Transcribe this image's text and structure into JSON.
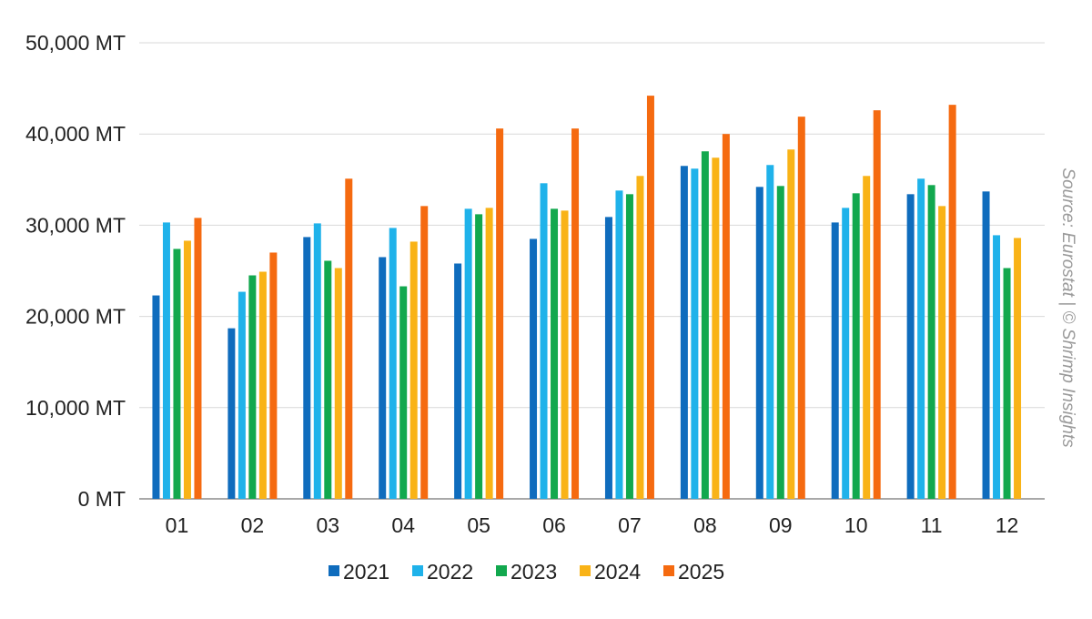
{
  "chart_data": {
    "type": "bar",
    "categories": [
      "01",
      "02",
      "03",
      "04",
      "05",
      "06",
      "07",
      "08",
      "09",
      "10",
      "11",
      "12"
    ],
    "y_ticks": [
      {
        "value": 0,
        "label": "0 MT"
      },
      {
        "value": 10000,
        "label": "10,000 MT"
      },
      {
        "value": 20000,
        "label": "20,000 MT"
      },
      {
        "value": 30000,
        "label": "30,000 MT"
      },
      {
        "value": 40000,
        "label": "40,000 MT"
      },
      {
        "value": 50000,
        "label": "50,000 MT"
      }
    ],
    "ylim": [
      0,
      50000
    ],
    "grid": true,
    "legend_position": "bottom",
    "series": [
      {
        "name": "2021",
        "color": "#0f6cbd",
        "values": [
          22300,
          18700,
          28700,
          26500,
          25800,
          28500,
          30900,
          36500,
          34200,
          30300,
          33400,
          33700
        ]
      },
      {
        "name": "2022",
        "color": "#1fb2ea",
        "values": [
          30300,
          22700,
          30200,
          29700,
          31800,
          34600,
          33800,
          36200,
          36600,
          31900,
          35100,
          28900
        ]
      },
      {
        "name": "2023",
        "color": "#12a84e",
        "values": [
          27400,
          24500,
          26100,
          23300,
          31200,
          31800,
          33400,
          38100,
          34300,
          33500,
          34400,
          25300
        ]
      },
      {
        "name": "2024",
        "color": "#f9b317",
        "values": [
          28300,
          24900,
          25300,
          28200,
          31900,
          31600,
          35400,
          37400,
          38300,
          35400,
          32100,
          28600
        ]
      },
      {
        "name": "2025",
        "color": "#f56a10",
        "values": [
          30800,
          27000,
          35100,
          32100,
          40600,
          40600,
          44200,
          40000,
          41900,
          42600,
          43200,
          null
        ]
      }
    ],
    "source_note": "Source: Eurostat | © Shrimp Insights"
  }
}
